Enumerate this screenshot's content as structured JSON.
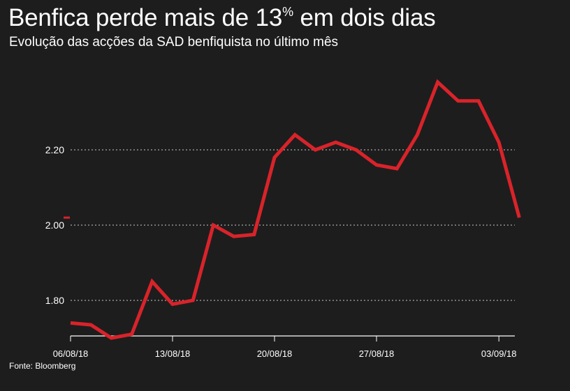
{
  "header": {
    "title_main": "Benfica perde mais de 13",
    "title_pct": "%",
    "title_rest": " em dois dias",
    "subtitle": "Evolução das acções da SAD benfiquista no último mês"
  },
  "footer": {
    "source": "Fonte: Bloomberg"
  },
  "chart_data": {
    "type": "line",
    "title": "Benfica perde mais de 13% em dois dias",
    "subtitle": "Evolução das acções da SAD benfiquista no último mês",
    "series": [
      {
        "color": "#d9232a",
        "x": [
          0,
          1,
          2,
          3,
          4,
          5,
          6,
          7,
          8,
          9,
          10,
          11,
          12,
          13,
          14,
          15,
          16,
          17,
          18,
          19,
          20,
          21,
          22
        ],
        "values": [
          1.74,
          1.735,
          1.7,
          1.71,
          1.85,
          1.79,
          1.8,
          2.0,
          1.97,
          1.975,
          2.18,
          2.24,
          2.2,
          2.22,
          2.2,
          2.16,
          2.15,
          2.24,
          2.38,
          2.33,
          2.33,
          2.22,
          2.02
        ]
      }
    ],
    "x_ticks": [
      {
        "x": 0,
        "label": "06/08/18"
      },
      {
        "x": 5,
        "label": "13/08/18"
      },
      {
        "x": 10,
        "label": "20/08/18"
      },
      {
        "x": 15,
        "label": "27/08/18"
      },
      {
        "x": 21,
        "label": "03/09/18"
      }
    ],
    "y_ticks": [
      {
        "value": 1.8,
        "label": "1.80"
      },
      {
        "value": 2.0,
        "label": "2.00"
      },
      {
        "value": 2.2,
        "label": "2.20"
      }
    ],
    "ylim": [
      1.7,
      2.4
    ],
    "grid": true,
    "line_color": "#d9232a",
    "grid_color": "#cccccc",
    "background": "#1d1d1d"
  }
}
